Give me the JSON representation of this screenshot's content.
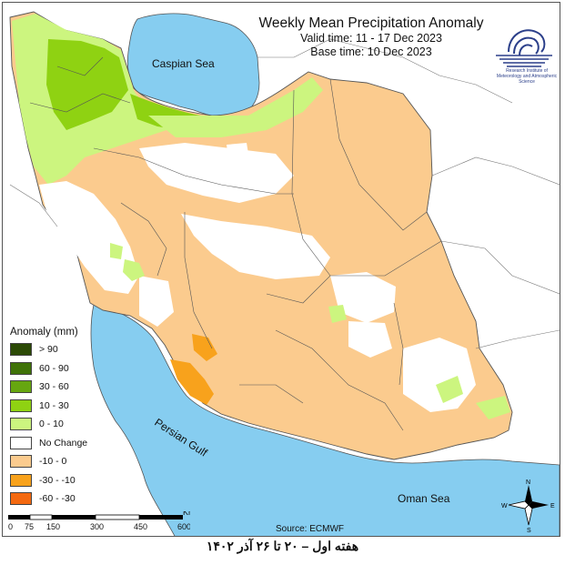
{
  "map": {
    "title": "Weekly Mean Precipitation Anomaly",
    "valid_time": "Valid time: 11 - 17 Dec 2023",
    "base_time": "Base time: 10 Dec 2023",
    "source": "Source: ECMWF",
    "footer": "هفته اول – ۲۰ تا ۲۶ آذر ۱۴۰۲",
    "places": {
      "caspian": "Caspian Sea",
      "persian_gulf": "Persian Gulf",
      "oman_sea": "Oman Sea"
    },
    "logo_text": "Research Institute of Meteorology and Atmospheric Science"
  },
  "legend": {
    "title": "Anomaly (mm)",
    "items": [
      {
        "label": "> 90",
        "color": "#2c4a06"
      },
      {
        "label": "60 - 90",
        "color": "#3f7208"
      },
      {
        "label": "30 - 60",
        "color": "#66a610"
      },
      {
        "label": "10 - 30",
        "color": "#8fd212"
      },
      {
        "label": "0 - 10",
        "color": "#ccf57f"
      },
      {
        "label": "No Change",
        "color": "#ffffff"
      },
      {
        "label": "-10 - 0",
        "color": "#fbcb8e"
      },
      {
        "label": "-30 - -10",
        "color": "#f8a21c"
      },
      {
        "label": "-60 - -30",
        "color": "#f46910"
      }
    ]
  },
  "scale": {
    "ticks": [
      "0",
      "75",
      "150",
      "300",
      "450",
      "600"
    ],
    "unit": "Km"
  },
  "compass": {
    "n": "N",
    "s": "S",
    "e": "E",
    "w": "W"
  },
  "colors": {
    "sea": "#86cdf0",
    "land_outside": "#ffffff",
    "boundary": "#555555"
  }
}
